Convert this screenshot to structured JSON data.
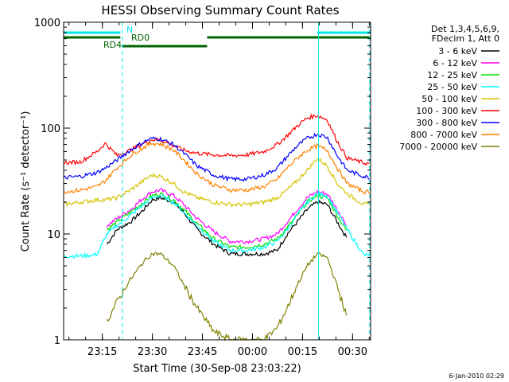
{
  "chart_data": {
    "type": "line",
    "title": "HESSI Observing Summary Count Rates",
    "xlabel": "Start Time (30-Sep-08 23:03:22)",
    "ylabel": "Count Rate (s⁻¹ detector⁻¹)",
    "yscale": "log",
    "ylim": [
      1,
      1000
    ],
    "xlim_minutes": [
      0,
      92
    ],
    "x_ticks": [
      {
        "label": "23:15",
        "minute": 11.6
      },
      {
        "label": "23:30",
        "minute": 26.6
      },
      {
        "label": "23:45",
        "minute": 41.6
      },
      {
        "label": "00:00",
        "minute": 56.6
      },
      {
        "label": "00:15",
        "minute": 71.6
      },
      {
        "label": "00:30",
        "minute": 86.6
      }
    ],
    "y_ticks": [
      {
        "label": "1",
        "value": 1
      },
      {
        "label": "10",
        "value": 10
      },
      {
        "label": "100",
        "value": 100
      },
      {
        "label": "1000",
        "value": 1000
      }
    ],
    "legend_header": [
      "Det 1,3,4,5,6,9,",
      "FDecim 1, Att 0"
    ],
    "legend_placement": "right",
    "series": [
      {
        "name": "3 - 6 keV",
        "color": "#000000",
        "x": [
          13,
          16,
          20,
          24,
          26.5,
          29,
          33,
          36,
          40,
          45,
          50,
          55,
          60,
          64,
          67,
          70,
          73,
          76,
          79,
          82,
          85
        ],
        "y": [
          8,
          11,
          13,
          17,
          21,
          22,
          20,
          16,
          11,
          8,
          6.5,
          6.5,
          6.5,
          7,
          10,
          13,
          17,
          20,
          19,
          13,
          9
        ]
      },
      {
        "name": "6 - 12 keV",
        "color": "#ff00ff",
        "x": [
          13,
          16,
          20,
          24,
          26.5,
          29,
          33,
          36,
          40,
          45,
          50,
          55,
          60,
          64,
          67,
          70,
          73,
          76,
          79,
          82,
          85
        ],
        "y": [
          12,
          14,
          17,
          22,
          25,
          26,
          23,
          19,
          14,
          10.5,
          8.5,
          8.5,
          9,
          10,
          13,
          17,
          22,
          25,
          24,
          17,
          12
        ]
      },
      {
        "name": "12 - 25 keV",
        "color": "#00e000",
        "x": [
          13,
          16,
          20,
          24,
          26.5,
          29,
          33,
          36,
          40,
          45,
          50,
          55,
          60,
          64,
          67,
          70,
          73,
          76,
          79,
          82,
          85
        ],
        "y": [
          11,
          13,
          16,
          20,
          23,
          24,
          21,
          17,
          12.5,
          9,
          7.5,
          7.5,
          8,
          9,
          11.5,
          15,
          20,
          23,
          22,
          15,
          10.5
        ]
      },
      {
        "name": "25 - 50 keV",
        "color": "#00ffff",
        "x": [
          0,
          5,
          10,
          13,
          16,
          20,
          24,
          26.5,
          29,
          33,
          36,
          40,
          45,
          50,
          55,
          60,
          64,
          67,
          70,
          73,
          76,
          79,
          82,
          85,
          90,
          92
        ],
        "y": [
          6.2,
          6.2,
          6.4,
          10,
          12,
          15,
          19,
          22,
          23,
          20,
          16,
          12,
          8.5,
          7,
          7,
          7.5,
          8.5,
          11,
          15,
          20,
          24,
          23,
          16,
          11,
          6.3,
          6.3
        ]
      },
      {
        "name": "50 - 100 keV",
        "color": "#d4c400",
        "x": [
          0,
          5,
          10,
          12.5,
          16,
          20,
          24,
          26.5,
          29,
          33,
          36,
          40,
          45,
          50,
          55,
          60,
          64,
          67,
          70,
          73,
          76,
          79,
          82,
          85,
          90,
          92
        ],
        "y": [
          19,
          20,
          21,
          21,
          22,
          26,
          32,
          36,
          35,
          30,
          25,
          22,
          20,
          19,
          19,
          20,
          22,
          26,
          32,
          40,
          52,
          44,
          30,
          24,
          19,
          19
        ]
      },
      {
        "name": "100 - 300 keV",
        "color": "#ff0000",
        "x": [
          0,
          5,
          10,
          12.5,
          16,
          20,
          24,
          26.5,
          29,
          33,
          36,
          40,
          45,
          50,
          55,
          60,
          64,
          67,
          70,
          73,
          76,
          79,
          82,
          85,
          90,
          92
        ],
        "y": [
          47,
          48,
          60,
          72,
          55,
          62,
          72,
          78,
          78,
          68,
          62,
          58,
          56,
          55,
          56,
          60,
          70,
          85,
          105,
          125,
          132,
          120,
          75,
          52,
          47,
          46
        ]
      },
      {
        "name": "300 - 800 keV",
        "color": "#0000ff",
        "x": [
          0,
          5,
          10,
          12.5,
          16,
          20,
          24,
          26.5,
          29,
          33,
          36,
          40,
          45,
          50,
          55,
          60,
          64,
          67,
          70,
          73,
          76,
          79,
          82,
          85,
          90,
          92
        ],
        "y": [
          34,
          35,
          38,
          42,
          50,
          62,
          74,
          80,
          79,
          70,
          58,
          44,
          36,
          33,
          33,
          36,
          42,
          54,
          68,
          80,
          88,
          82,
          55,
          40,
          35,
          34
        ]
      },
      {
        "name": "800 - 7000 keV",
        "color": "#ff8000",
        "x": [
          0,
          5,
          10,
          12.5,
          16,
          20,
          24,
          26.5,
          29,
          33,
          36,
          40,
          45,
          50,
          55,
          60,
          64,
          67,
          70,
          73,
          76,
          79,
          82,
          85,
          90,
          92
        ],
        "y": [
          25,
          26,
          28,
          32,
          42,
          55,
          66,
          72,
          71,
          62,
          50,
          37,
          29,
          26,
          26,
          28,
          33,
          42,
          52,
          62,
          68,
          62,
          42,
          30,
          25,
          25
        ]
      },
      {
        "name": "7000 - 20000 keV",
        "color": "#808000",
        "x": [
          13,
          16,
          20,
          24,
          26.5,
          29,
          33,
          36,
          40,
          45,
          50,
          55,
          60,
          64,
          67,
          70,
          73,
          76,
          79,
          82,
          85
        ],
        "y": [
          1.5,
          2.3,
          3.7,
          5.5,
          6.5,
          6.5,
          5,
          3.3,
          2,
          1.2,
          1,
          1,
          1,
          1.3,
          2,
          3.3,
          5,
          6.5,
          6,
          3.2,
          1.6
        ]
      }
    ],
    "flags": [
      {
        "label": "N",
        "color": "#00e8e8",
        "segments": [
          [
            0,
            17
          ],
          [
            76,
            92
          ]
        ]
      },
      {
        "label": "RD0",
        "color": "#006400",
        "segments": [
          [
            0,
            17
          ],
          [
            43,
            92
          ]
        ]
      },
      {
        "label": "RD4",
        "color": "#006400",
        "segments": [
          [
            17.5,
            43
          ]
        ]
      }
    ],
    "vertical_lines": [
      {
        "minute": 17.6,
        "style": "dashed",
        "color": "#00e8e8"
      },
      {
        "minute": 76.4,
        "style": "solid",
        "color": "#00e8e8"
      },
      {
        "minute": 91.7,
        "style": "dashed",
        "color": "#00e8e8"
      }
    ]
  },
  "footer_timestamp": "6-Jan-2010 02:29"
}
